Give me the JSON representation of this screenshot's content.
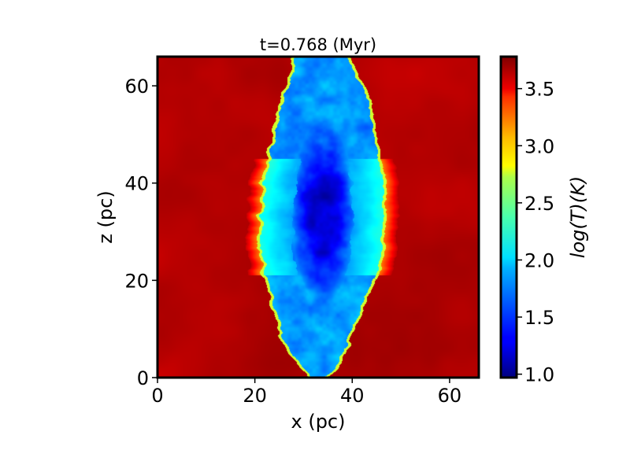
{
  "chart_data": {
    "type": "heatmap",
    "title": "t=0.768 (Myr)",
    "xlabel": "x (pc)",
    "ylabel": "z (pc)",
    "xlim": [
      0,
      66
    ],
    "ylim": [
      0,
      66
    ],
    "xticks": [
      0,
      20,
      40,
      60
    ],
    "yticks": [
      0,
      20,
      40,
      60
    ],
    "grid": false,
    "colormap": "jet",
    "colorbar": {
      "label": "log(T)(K)",
      "range": [
        0.97,
        3.78
      ],
      "ticks": [
        1.0,
        1.5,
        2.0,
        2.5,
        3.0,
        3.5
      ],
      "tick_labels": [
        "1.0",
        "1.5",
        "2.0",
        "2.5",
        "3.0",
        "3.5"
      ]
    },
    "field": {
      "background_logT": 3.65,
      "cloud_logT": 1.75,
      "cloud_core_logT": 1.3,
      "front_logT": 2.6,
      "warm_side_logT": 2.15,
      "cloud_boundary": [
        {
          "z": 0,
          "x_left": 31.0,
          "x_right": 35.0
        },
        {
          "z": 2,
          "x_left": 29.0,
          "x_right": 37.0
        },
        {
          "z": 6,
          "x_left": 26.5,
          "x_right": 39.0
        },
        {
          "z": 12,
          "x_left": 24.0,
          "x_right": 41.5
        },
        {
          "z": 20,
          "x_left": 22.0,
          "x_right": 45.0
        },
        {
          "z": 25,
          "x_left": 21.0,
          "x_right": 46.5
        },
        {
          "z": 32,
          "x_left": 21.0,
          "x_right": 47.0
        },
        {
          "z": 40,
          "x_left": 21.5,
          "x_right": 47.0
        },
        {
          "z": 45,
          "x_left": 22.5,
          "x_right": 46.0
        },
        {
          "z": 52,
          "x_left": 24.0,
          "x_right": 45.0
        },
        {
          "z": 58,
          "x_left": 25.5,
          "x_right": 44.0
        },
        {
          "z": 62,
          "x_left": 27.0,
          "x_right": 41.5
        },
        {
          "z": 66,
          "x_left": 28.0,
          "x_right": 40.0
        }
      ],
      "core_center": {
        "x": 34,
        "z": 34
      },
      "core_half_width": {
        "x": 5,
        "z": 15
      }
    }
  }
}
